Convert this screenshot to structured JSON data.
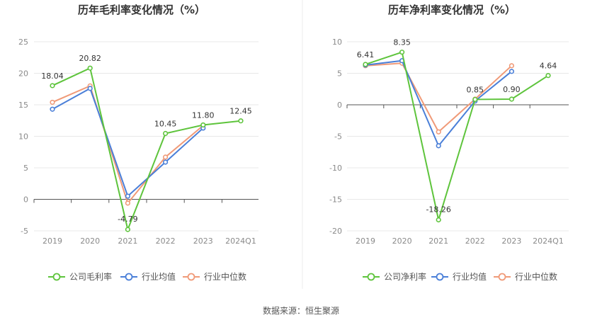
{
  "colors": {
    "company": "#5ec43c",
    "avg": "#4a7fd8",
    "median": "#f09a78",
    "grid": "#e8e8e8",
    "axis": "#555555"
  },
  "source": "数据来源：恒生聚源",
  "chart_data": [
    {
      "type": "line",
      "title": "历年毛利率变化情况（%）",
      "categories": [
        "2019",
        "2020",
        "2021",
        "2022",
        "2023",
        "2024Q1"
      ],
      "yticks": [
        "25",
        "20",
        "15",
        "10",
        "5",
        "0",
        "-5"
      ],
      "ylim": [
        -5,
        25
      ],
      "grid": true,
      "legend_position": "bottom",
      "series": [
        {
          "name": "公司毛利率",
          "key": "company",
          "values": [
            18.04,
            20.82,
            -4.79,
            10.45,
            11.8,
            12.45
          ],
          "labels": [
            "18.04",
            "20.82",
            "-4.79",
            "10.45",
            "11.80",
            "12.45"
          ]
        },
        {
          "name": "行业均值",
          "key": "avg",
          "values": [
            14.3,
            17.6,
            0.5,
            5.9,
            11.3,
            null
          ]
        },
        {
          "name": "行业中位数",
          "key": "median",
          "values": [
            15.4,
            18.0,
            -0.6,
            6.7,
            11.7,
            null
          ]
        }
      ]
    },
    {
      "type": "line",
      "title": "历年净利率变化情况（%）",
      "categories": [
        "2019",
        "2020",
        "2021",
        "2022",
        "2023",
        "2024Q1"
      ],
      "yticks": [
        "10",
        "5",
        "0",
        "-5",
        "-10",
        "-15",
        "-20"
      ],
      "ylim": [
        -20,
        10
      ],
      "grid": true,
      "legend_position": "bottom",
      "series": [
        {
          "name": "公司净利率",
          "key": "company",
          "values": [
            6.41,
            8.35,
            -18.26,
            0.85,
            0.9,
            4.64
          ],
          "labels": [
            "6.41",
            "8.35",
            "-18.26",
            "0.85",
            "0.90",
            "4.64"
          ]
        },
        {
          "name": "行业均值",
          "key": "avg",
          "values": [
            6.3,
            7.0,
            -6.5,
            0.6,
            5.3,
            null
          ]
        },
        {
          "name": "行业中位数",
          "key": "median",
          "values": [
            6.2,
            6.6,
            -4.3,
            0.9,
            6.2,
            null
          ]
        }
      ]
    }
  ]
}
